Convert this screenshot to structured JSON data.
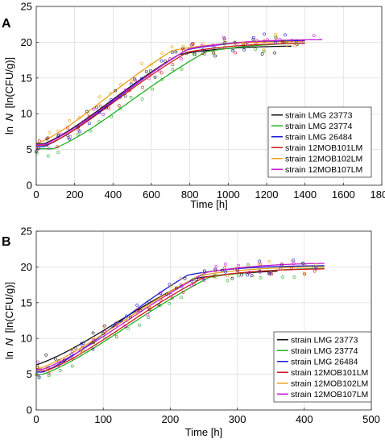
{
  "colors": {
    "strain LMG 23773": "#111111",
    "strain LMG 23774": "#22b022",
    "strain LMG 26484": "#1a1ad0",
    "strain 12MOB101LM": "#d01a1a",
    "strain 12MOB102LM": "#e8a21a",
    "strain 12MOB107LM": "#c81ad6"
  },
  "chart_data": [
    {
      "panel_label": "A",
      "type": "line",
      "xlabel": "Time [h]",
      "ylabel_prefix": "ln",
      "ylabel_italic": "N",
      "ylabel_unit": "[ln(CFU/g)]",
      "xlim": [
        0,
        1800
      ],
      "ylim": [
        0,
        25
      ],
      "xticks": [
        0,
        200,
        400,
        600,
        800,
        1000,
        1200,
        1400,
        1600,
        1800
      ],
      "yticks": [
        0,
        5,
        10,
        15,
        20,
        25
      ],
      "grid": true,
      "legend_position": "lower-right",
      "series": [
        {
          "name": "strain LMG 23773",
          "y0": 5.8,
          "ymax": 19.5,
          "lag": 40,
          "mu": 0.0195,
          "xend": 1330
        },
        {
          "name": "strain LMG 23774",
          "y0": 5.1,
          "ymax": 20.0,
          "lag": 90,
          "mu": 0.0188,
          "xend": 1400
        },
        {
          "name": "strain LMG 26484",
          "y0": 5.4,
          "ymax": 20.3,
          "lag": 40,
          "mu": 0.02,
          "xend": 1400
        },
        {
          "name": "strain 12MOB101LM",
          "y0": 5.6,
          "ymax": 19.9,
          "lag": 50,
          "mu": 0.0194,
          "xend": 1400
        },
        {
          "name": "strain 12MOB102LM",
          "y0": 6.0,
          "ymax": 20.1,
          "lag": 20,
          "mu": 0.0205,
          "xend": 1400
        },
        {
          "name": "strain 12MOB107LM",
          "y0": 5.7,
          "ymax": 20.4,
          "lag": 40,
          "mu": 0.0195,
          "xend": 1490
        }
      ]
    },
    {
      "panel_label": "B",
      "type": "line",
      "xlabel": "Time [h]",
      "ylabel_prefix": "ln",
      "ylabel_italic": "N",
      "ylabel_unit": "[ln(CFU/g)]",
      "xlim": [
        0,
        500
      ],
      "ylim": [
        0,
        25
      ],
      "xticks": [
        0,
        100,
        200,
        300,
        400,
        500
      ],
      "yticks": [
        0,
        5,
        10,
        15,
        20,
        25
      ],
      "grid": true,
      "legend_position": "lower-right",
      "series": [
        {
          "name": "strain LMG 23773",
          "y0": 6.3,
          "ymax": 19.6,
          "lag": 0,
          "mu": 0.056,
          "xend": 360
        },
        {
          "name": "strain LMG 23774",
          "y0": 5.0,
          "ymax": 19.9,
          "lag": 10,
          "mu": 0.06,
          "xend": 430
        },
        {
          "name": "strain LMG 26484",
          "y0": 5.3,
          "ymax": 20.2,
          "lag": 10,
          "mu": 0.069,
          "xend": 430
        },
        {
          "name": "strain 12MOB101LM",
          "y0": 5.5,
          "ymax": 19.8,
          "lag": 15,
          "mu": 0.061,
          "xend": 430
        },
        {
          "name": "strain 12MOB102LM",
          "y0": 5.8,
          "ymax": 20.1,
          "lag": 5,
          "mu": 0.06,
          "xend": 430
        },
        {
          "name": "strain 12MOB107LM",
          "y0": 5.7,
          "ymax": 20.6,
          "lag": 10,
          "mu": 0.061,
          "xend": 430
        }
      ]
    }
  ]
}
